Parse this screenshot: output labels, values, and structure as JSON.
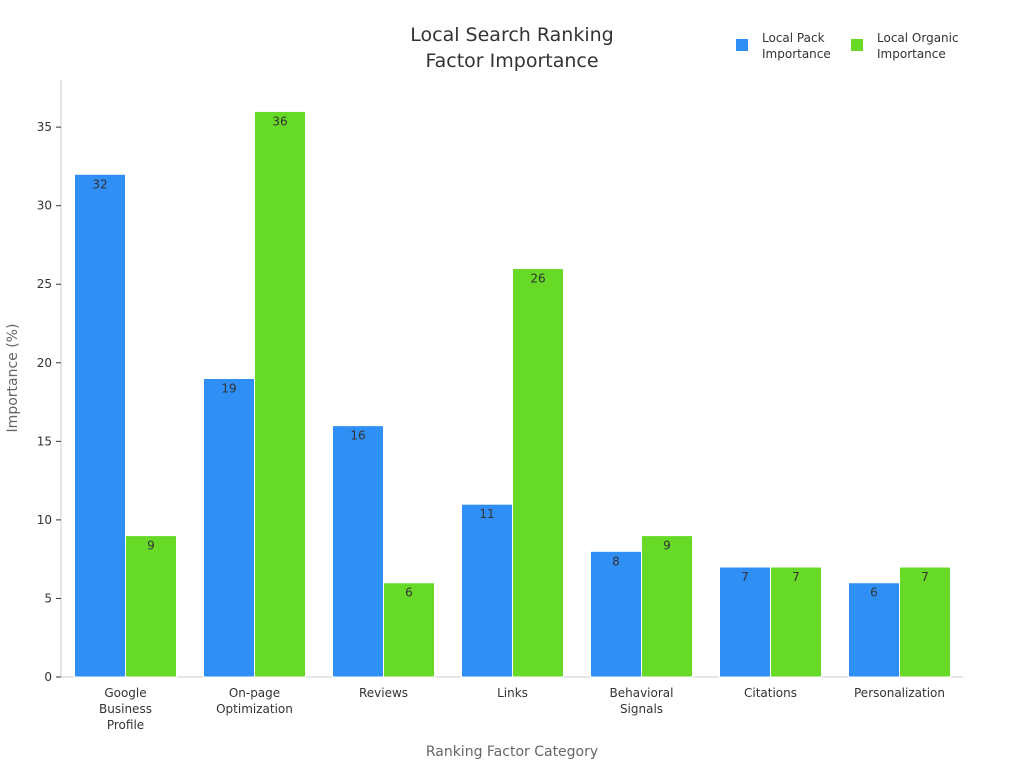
{
  "chart_data": {
    "type": "bar",
    "title_lines": [
      "Local Search Ranking",
      "Factor Importance"
    ],
    "xlabel": "Ranking Factor Category",
    "ylabel": "Importance (%)",
    "ylim": [
      0,
      38
    ],
    "yticks": [
      0,
      5,
      10,
      15,
      20,
      25,
      30,
      35
    ],
    "grid": false,
    "legend_position": "top-right",
    "categories": [
      [
        "Google",
        "Business",
        "Profile"
      ],
      [
        "On-page",
        "Optimization"
      ],
      [
        "Reviews"
      ],
      [
        "Links"
      ],
      [
        "Behavioral",
        "Signals"
      ],
      [
        "Citations"
      ],
      [
        "Personalization"
      ]
    ],
    "series": [
      {
        "name_lines": [
          "Local Pack",
          "Importance"
        ],
        "color": "#2f8ff5",
        "values": [
          32,
          19,
          16,
          11,
          8,
          7,
          6
        ]
      },
      {
        "name_lines": [
          "Local Organic",
          "Importance"
        ],
        "color": "#66da26",
        "values": [
          9,
          36,
          6,
          26,
          9,
          7,
          7
        ]
      }
    ]
  }
}
